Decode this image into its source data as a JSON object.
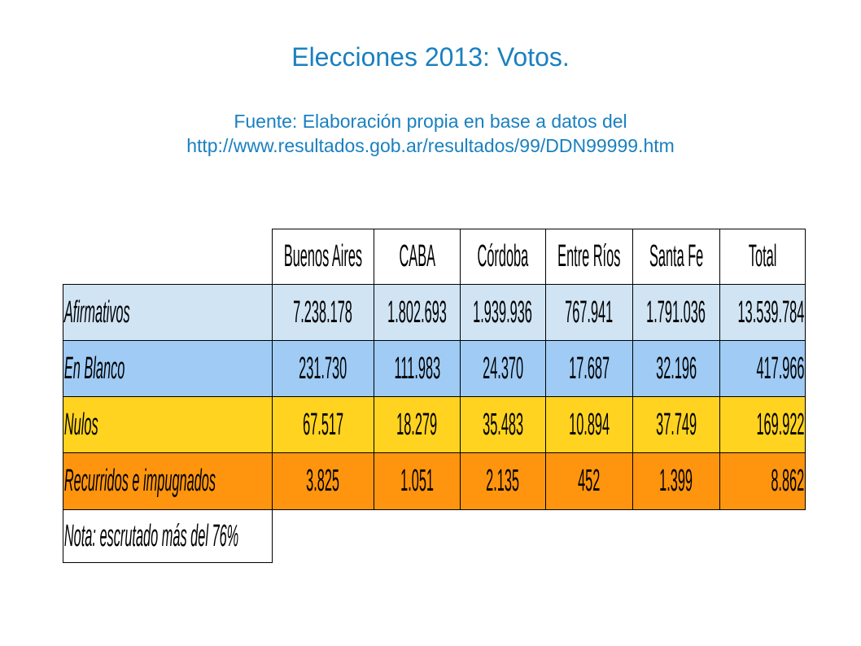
{
  "title": "Elecciones 2013: Votos.",
  "subtitle": [
    "Fuente: Elaboración propia en base a datos del",
    "http://www.resultados.gob.ar/resultados/99/DDN99999.htm"
  ],
  "table": {
    "header": [
      "Buenos Aires",
      "CABA",
      "Córdoba",
      "Entre Ríos",
      "Santa Fe",
      "Total"
    ],
    "rows": [
      [
        "Afirmativos",
        "7.238.178",
        "1.802.693",
        "1.939.936",
        "767.941",
        "1.791.036",
        "13.539.784"
      ],
      [
        "En Blanco",
        "231.730",
        "111.983",
        "24.370",
        "17.687",
        "32.196",
        "417.966"
      ],
      [
        "Nulos",
        "67.517",
        "18.279",
        "35.483",
        "10.894",
        "37.749",
        "169.922"
      ],
      [
        "Recurridos e impugnados",
        "3.825",
        "1.051",
        "2.135",
        "452",
        "1.399",
        "8.862"
      ]
    ],
    "note": "Nota: escrutado más del 76%"
  }
}
